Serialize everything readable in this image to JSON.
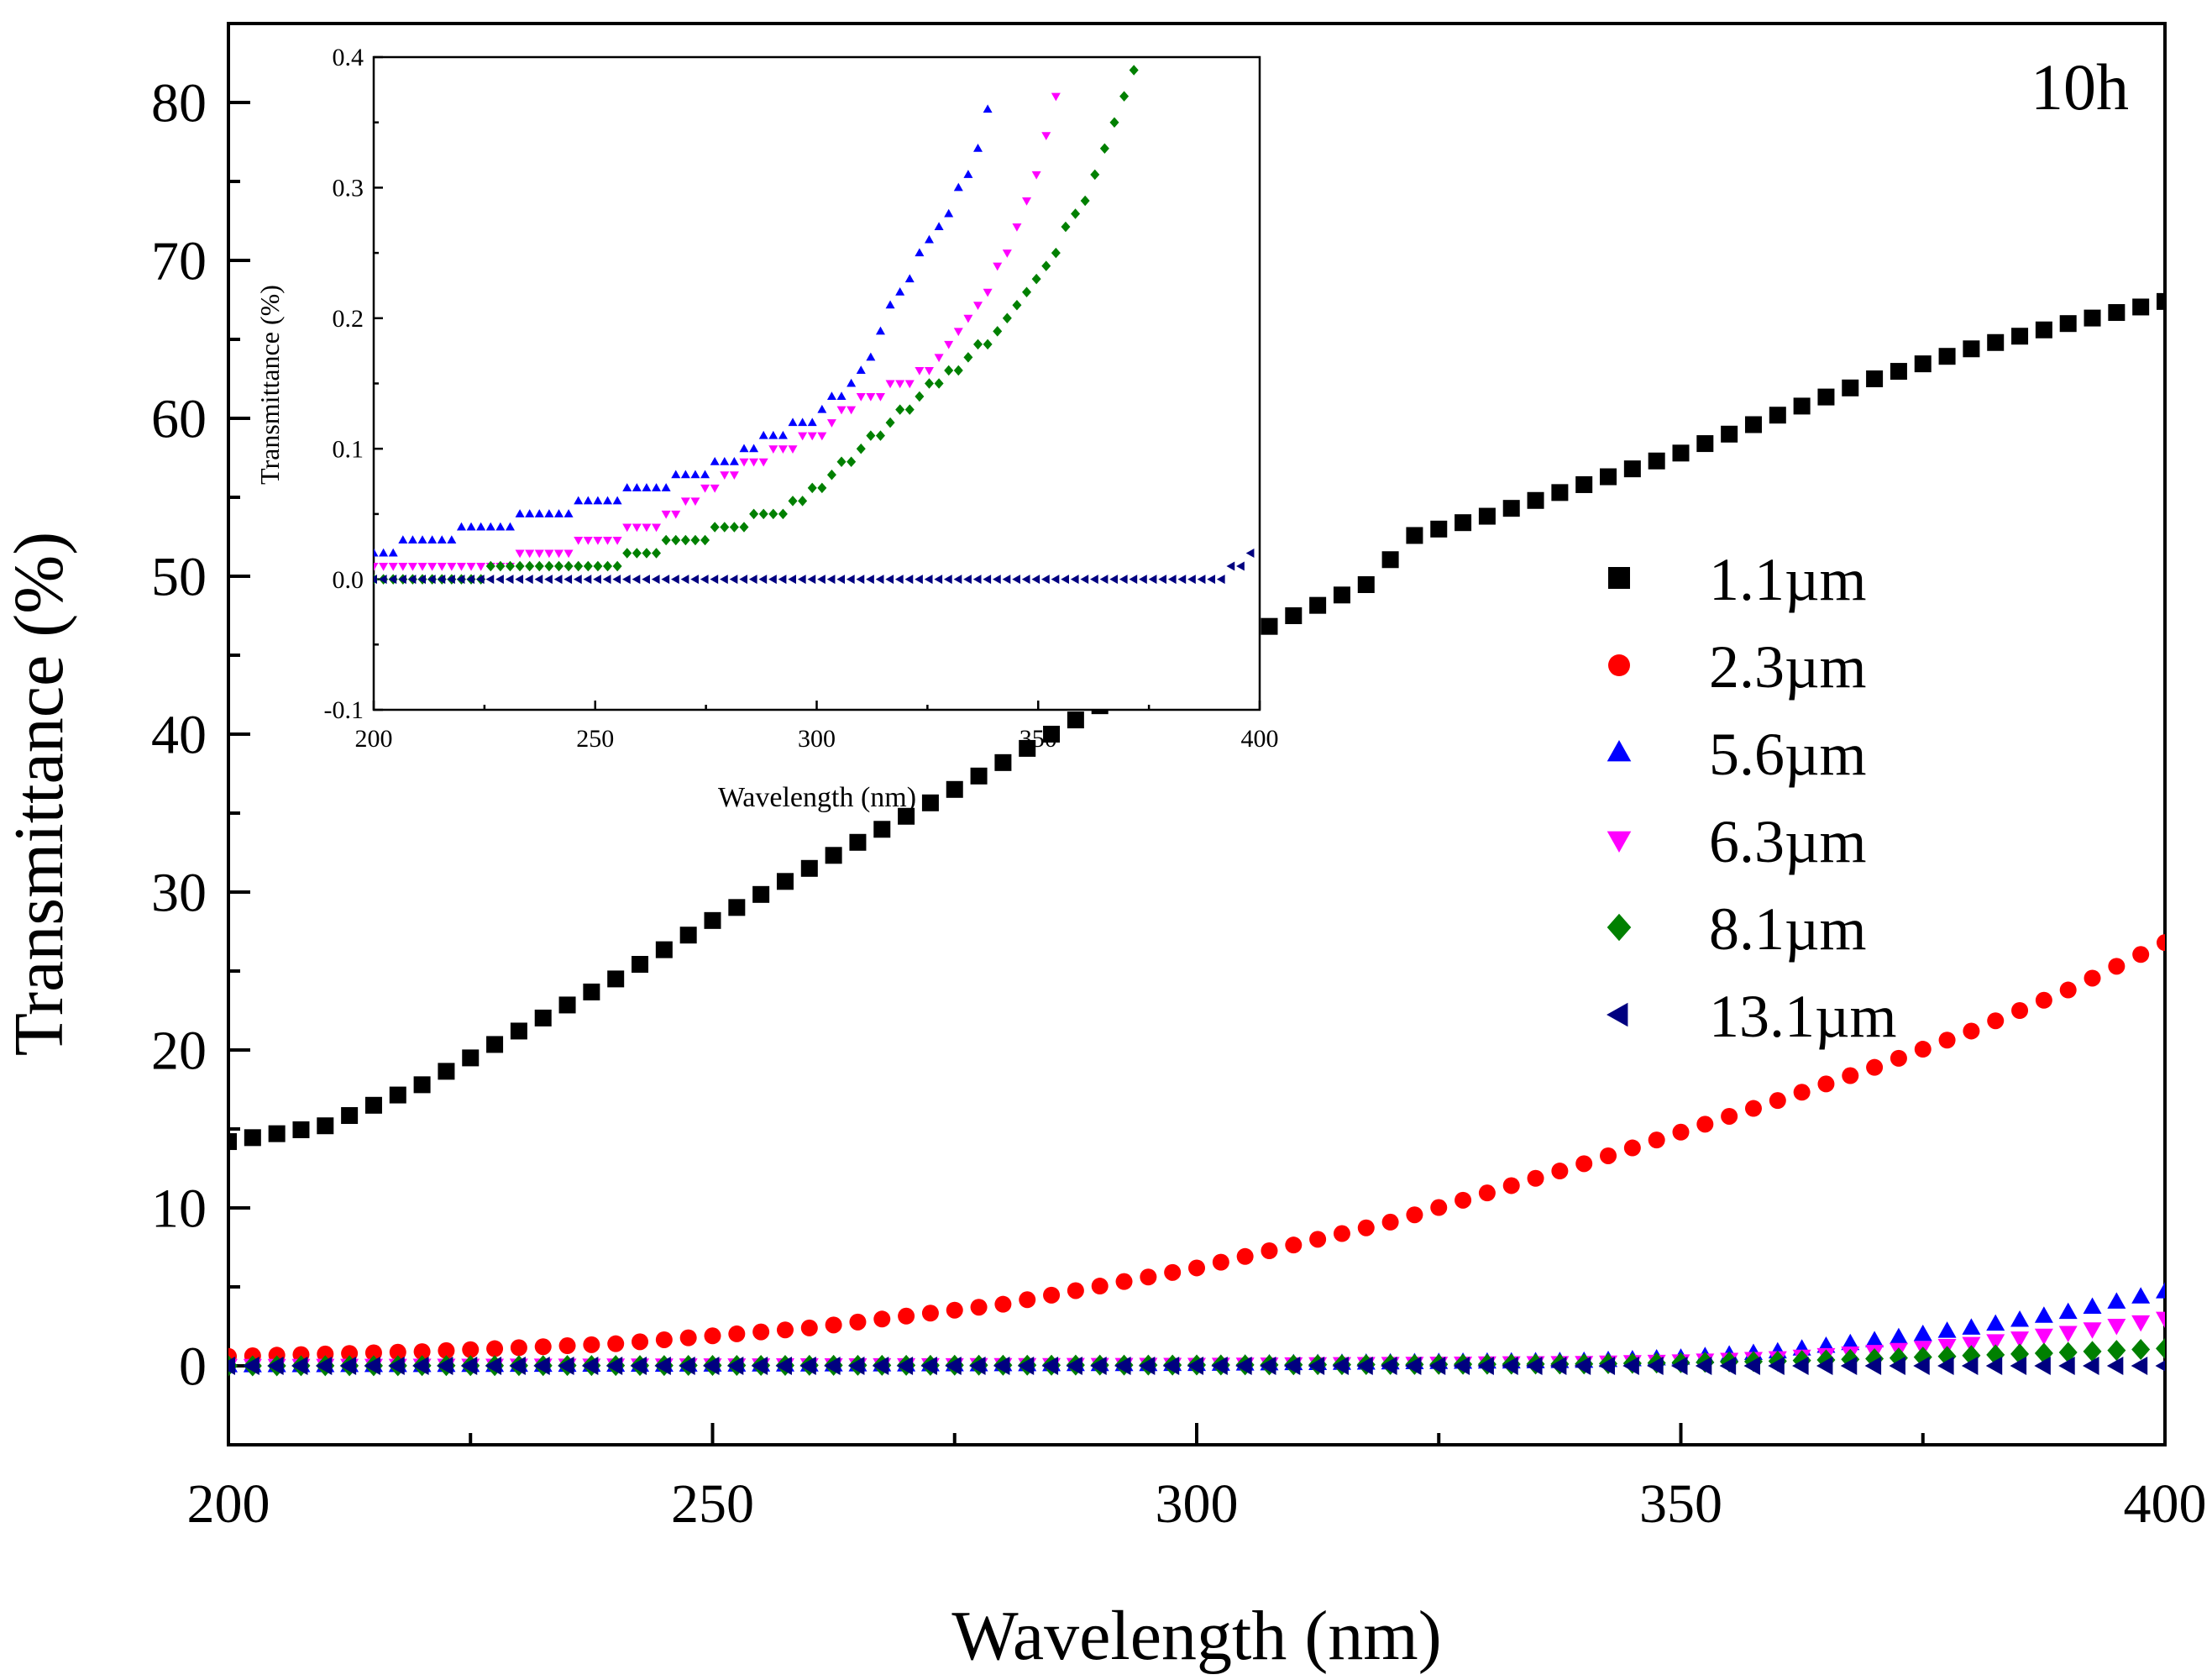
{
  "chart_data": [
    {
      "type": "scatter",
      "title": "",
      "annotation": "10h",
      "xlabel": "Wavelength (nm)",
      "ylabel": "Transmittance (%)",
      "xlim": [
        200,
        400
      ],
      "ylim": [
        -5,
        85
      ],
      "xticks": [
        200,
        250,
        300,
        350,
        400
      ],
      "yticks": [
        0,
        10,
        20,
        30,
        40,
        50,
        60,
        70,
        80
      ],
      "xtick_labels": [
        "200",
        "250",
        "300",
        "350",
        "400"
      ],
      "ytick_labels": [
        "0",
        "10",
        "20",
        "30",
        "40",
        "50",
        "60",
        "70",
        "80"
      ],
      "legend_position": "right",
      "series": [
        {
          "name": "1.1µm",
          "marker": "square",
          "color": "#000000",
          "x": [
            200,
            210,
            220,
            230,
            240,
            250,
            260,
            270,
            280,
            290,
            300,
            310,
            318,
            322,
            330,
            340,
            350,
            360,
            370,
            380,
            390,
            400
          ],
          "y": [
            14.2,
            15.2,
            17.8,
            21.2,
            24.5,
            28.2,
            31.5,
            34.8,
            38.2,
            41.8,
            44.8,
            47.5,
            49.6,
            52.5,
            53.8,
            55.8,
            57.8,
            60.2,
            62.5,
            64.4,
            66.0,
            67.4
          ]
        },
        {
          "name": "2.3µm",
          "marker": "circle",
          "color": "#ff0000",
          "x": [
            200,
            220,
            240,
            260,
            280,
            300,
            320,
            340,
            350,
            360,
            370,
            380,
            390,
            400
          ],
          "y": [
            0.6,
            0.9,
            1.4,
            2.4,
            3.9,
            6.2,
            9.1,
            12.8,
            14.8,
            16.8,
            18.9,
            21.2,
            23.8,
            26.8
          ]
        },
        {
          "name": "5.6µm",
          "marker": "triangle-up",
          "color": "#0000ff",
          "x": [
            200,
            300,
            340,
            350,
            360,
            370,
            380,
            390,
            400
          ],
          "y": [
            0.02,
            0.1,
            0.3,
            0.5,
            0.9,
            1.6,
            2.4,
            3.4,
            4.7
          ]
        },
        {
          "name": "6.3µm",
          "marker": "triangle-down",
          "color": "#ff00ff",
          "x": [
            200,
            300,
            340,
            350,
            360,
            370,
            380,
            390,
            400
          ],
          "y": [
            0.01,
            0.08,
            0.2,
            0.3,
            0.5,
            0.9,
            1.4,
            2.1,
            3.0
          ]
        },
        {
          "name": "8.1µm",
          "marker": "diamond",
          "color": "#008000",
          "x": [
            200,
            300,
            340,
            350,
            360,
            370,
            380,
            390,
            400
          ],
          "y": [
            0.0,
            0.05,
            0.12,
            0.2,
            0.3,
            0.45,
            0.65,
            0.85,
            1.1
          ]
        },
        {
          "name": "13.1µm",
          "marker": "triangle-left",
          "color": "#000080",
          "x": [
            200,
            250,
            300,
            350,
            400
          ],
          "y": [
            0.0,
            0.0,
            0.0,
            0.0,
            0.0
          ]
        }
      ]
    },
    {
      "type": "scatter",
      "title": "",
      "xlabel": "Wavelength (nm)",
      "ylabel": "Transmittance (%)",
      "xlim": [
        200,
        400
      ],
      "ylim": [
        -0.1,
        0.4
      ],
      "xticks": [
        200,
        250,
        300,
        350,
        400
      ],
      "yticks": [
        -0.1,
        0.0,
        0.1,
        0.2,
        0.3,
        0.4
      ],
      "xtick_labels": [
        "200",
        "250",
        "300",
        "350",
        "400"
      ],
      "ytick_labels": [
        "-0.1",
        "0.0",
        "0.1",
        "0.2",
        "0.3",
        "0.4"
      ],
      "series": [
        {
          "name": "5.6µm",
          "marker": "triangle-up",
          "color": "#0000ff",
          "x": [
            200,
            212,
            225,
            238,
            250,
            262,
            272,
            280,
            290,
            298,
            305,
            312,
            318,
            324,
            330,
            336,
            340
          ],
          "y": [
            0.02,
            0.03,
            0.04,
            0.05,
            0.06,
            0.07,
            0.08,
            0.09,
            0.11,
            0.12,
            0.14,
            0.17,
            0.22,
            0.25,
            0.28,
            0.33,
            0.37
          ]
        },
        {
          "name": "6.3µm",
          "marker": "triangle-down",
          "color": "#ff00ff",
          "x": [
            200,
            225,
            238,
            250,
            262,
            272,
            285,
            300,
            310,
            320,
            328,
            335,
            340,
            345,
            350,
            355
          ],
          "y": [
            0.01,
            0.01,
            0.02,
            0.03,
            0.04,
            0.06,
            0.09,
            0.11,
            0.14,
            0.15,
            0.17,
            0.2,
            0.23,
            0.27,
            0.31,
            0.38
          ]
        },
        {
          "name": "8.1µm",
          "marker": "diamond",
          "color": "#008000",
          "x": [
            200,
            250,
            260,
            270,
            280,
            290,
            300,
            310,
            320,
            330,
            338,
            345,
            352,
            360,
            366,
            372
          ],
          "y": [
            0.0,
            0.01,
            0.02,
            0.03,
            0.04,
            0.05,
            0.07,
            0.1,
            0.13,
            0.16,
            0.18,
            0.21,
            0.24,
            0.29,
            0.34,
            0.39
          ]
        },
        {
          "name": "13.1µm",
          "marker": "triangle-left",
          "color": "#000080",
          "x": [
            200,
            250,
            300,
            350,
            390,
            395,
            400
          ],
          "y": [
            0.0,
            0.0,
            0.0,
            0.0,
            0.0,
            0.01,
            0.02
          ]
        }
      ]
    }
  ]
}
